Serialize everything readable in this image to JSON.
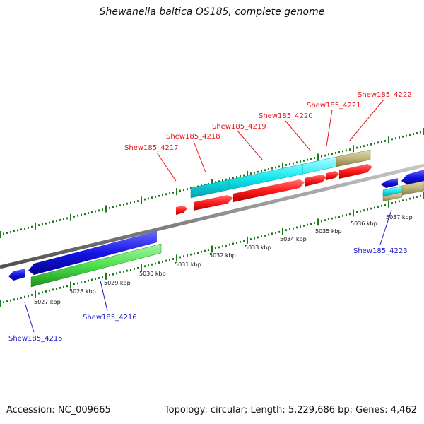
{
  "title": "Shewanella baltica OS185, complete genome",
  "footer": {
    "accession": "Accession: NC_009665",
    "summary": "Topology: circular; Length: 5,229,686 bp; Genes: 4,462"
  },
  "colors": {
    "red": "#ff1a1a",
    "blue": "#1515e6",
    "cyan": "#16e8f0",
    "green": "#4de04d",
    "tan": "#bdb57a",
    "backbone": "#8c8c8c",
    "ticks": "#1e7a1e",
    "label_red": "#e8141a",
    "label_blue": "#1b1bd0"
  },
  "kbp_labels": [
    "5027 kbp",
    "5028 kbp",
    "5029 kbp",
    "5030 kbp",
    "5031 kbp",
    "5032 kbp",
    "5033 kbp",
    "5034 kbp",
    "5035 kbp",
    "5036 kbp",
    "5037 kbp"
  ],
  "gene_labels_top": [
    "Shew185_4217",
    "Shew185_4218",
    "Shew185_4219",
    "Shew185_4220",
    "Shew185_4221",
    "Shew185_4222"
  ],
  "gene_labels_bottom": [
    "Shew185_4215",
    "Shew185_4216",
    "Shew185_4223"
  ]
}
